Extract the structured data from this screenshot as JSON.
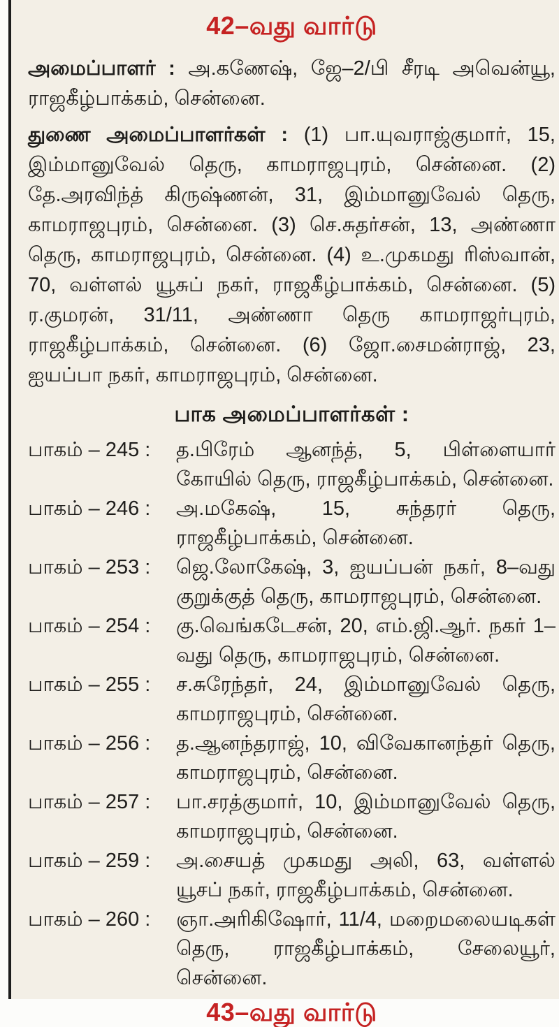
{
  "page": {
    "ward_heading": "42–வது வார்டு",
    "next_ward_heading": "43–வது வார்டு",
    "accent_color": "#c52222",
    "background_color": "#f3efe6",
    "edge_rule_color": "#1d1d1d",
    "text_color": "#1e1d1b"
  },
  "organizer": {
    "label": "அமைப்பாளர் :",
    "text": "அ.கணேஷ், ஜே–2/பி சீரடி அவென்யூ, ராஜகீழ்பாக்கம், சென்னை."
  },
  "deputy_organizers": {
    "label": "துணை அமைப்பாளர்கள் :",
    "text": "(1) பா.யுவராஜ்குமார், 15, இம்மானுவேல் தெரு, காமராஜபுரம், சென்னை. (2) தே.அரவிந்த் கிருஷ்ணன், 31, இம்மானுவேல் தெரு, காமராஜபுரம், சென்னை. (3) செ.சுதர்சன், 13, அண்ணா தெரு, காமராஜபுரம், சென்னை. (4) உ.முகமது ரிஸ்வான், 70, வள்ளல் யூசுப் நகர், ராஜகீழ்பாக்கம், சென்னை. (5) ர.குமரன், 31/11, அண்ணா தெரு காமராஜர்புரம், ராஜகீழ்பாக்கம், சென்னை. (6) ஜோ.சைமன்ராஜ், 23, ஐயப்பா நகர், காமராஜபுரம், சென்னை."
  },
  "section_organizers": {
    "heading": "பாக அமைப்பாளர்கள் :",
    "items": [
      {
        "label": "பாகம் – 245 :",
        "text": "த.பிரேம் ஆனந்த், 5, பிள்ளையார் கோயில் தெரு, ராஜகீழ்பாக்கம், சென்னை."
      },
      {
        "label": "பாகம் – 246 :",
        "text": "அ.மகேஷ், 15, சுந்தரர் தெரு, ராஜகீழ்பாக்கம், சென்னை."
      },
      {
        "label": "பாகம் – 253 :",
        "text": "ஜெ.லோகேஷ், 3, ஐயப்பன் நகர், 8–வது குறுக்குத் தெரு, காமராஜபுரம், சென்னை."
      },
      {
        "label": "பாகம் – 254 :",
        "text": "கு.வெங்கடேசன், 20, எம்.ஜி.ஆர். நகர் 1–வது தெரு, காமராஜபுரம், சென்னை."
      },
      {
        "label": "பாகம் – 255 :",
        "text": "ச.சுரேந்தர், 24, இம்மானுவேல் தெரு, காமராஜபுரம், சென்னை."
      },
      {
        "label": "பாகம் – 256 :",
        "text": "த.ஆனந்தராஜ், 10, விவேகானந்தர் தெரு, காமராஜபுரம், சென்னை."
      },
      {
        "label": "பாகம் – 257 :",
        "text": "பா.சரத்குமார், 10, இம்மானுவேல் தெரு, காமராஜபுரம், சென்னை."
      },
      {
        "label": "பாகம் – 259 :",
        "text": "அ.சையத் முகமது அலி, 63, வள்ளல் யூசப் நகர், ராஜகீழ்பாக்கம், சென்னை."
      },
      {
        "label": "பாகம் – 260 :",
        "text": "ஞா.அரிகிஷோர், 11/4, மறைமலையடிகள் தெரு, ராஜகீழ்பாக்கம், சேலையூர், சென்னை."
      }
    ]
  }
}
